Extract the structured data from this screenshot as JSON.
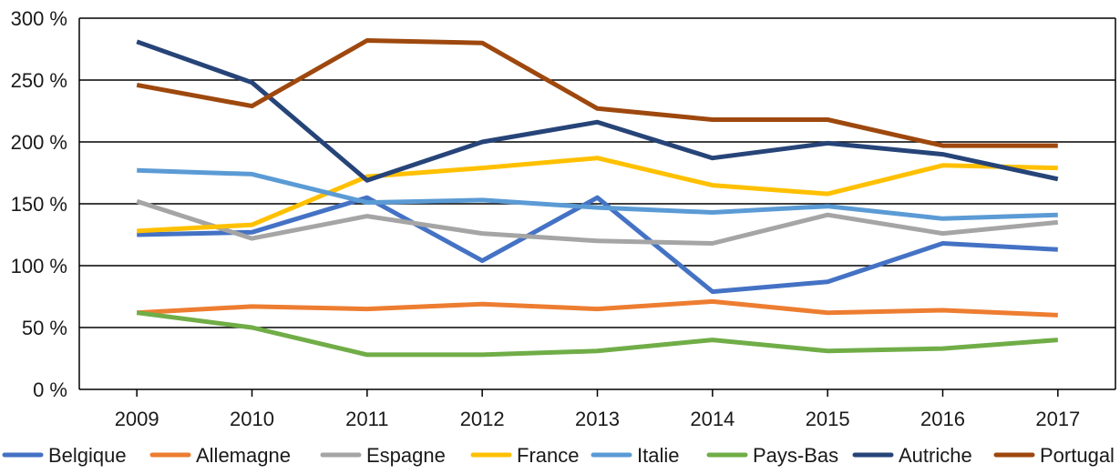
{
  "chart_data": {
    "type": "line",
    "title": "",
    "xlabel": "",
    "ylabel": "",
    "categories": [
      "2009",
      "2010",
      "2011",
      "2012",
      "2013",
      "2014",
      "2015",
      "2016",
      "2017"
    ],
    "ylim": [
      0,
      300
    ],
    "yticks": [
      0,
      50,
      100,
      150,
      200,
      250,
      300
    ],
    "ytick_labels": [
      "0 %",
      "50 %",
      "100 %",
      "150 %",
      "200 %",
      "250 %",
      "300 %"
    ],
    "grid": "horizontal",
    "legend_position": "bottom",
    "series": [
      {
        "name": "Belgique",
        "color": "#4472C4",
        "values": [
          125,
          127,
          155,
          104,
          155,
          79,
          87,
          118,
          113
        ]
      },
      {
        "name": "Allemagne",
        "color": "#ED7D31",
        "values": [
          62,
          67,
          65,
          69,
          65,
          71,
          62,
          64,
          60
        ]
      },
      {
        "name": "Espagne",
        "color": "#A5A5A5",
        "values": [
          152,
          122,
          140,
          126,
          120,
          118,
          141,
          126,
          135
        ]
      },
      {
        "name": "France",
        "color": "#FFC000",
        "values": [
          128,
          133,
          172,
          179,
          187,
          165,
          158,
          181,
          179
        ]
      },
      {
        "name": "Italie",
        "color": "#5B9BD5",
        "values": [
          177,
          174,
          151,
          153,
          147,
          143,
          148,
          138,
          141
        ]
      },
      {
        "name": "Pays-Bas",
        "color": "#70AD47",
        "values": [
          62,
          50,
          28,
          28,
          31,
          40,
          31,
          33,
          40
        ]
      },
      {
        "name": "Autriche",
        "color": "#264478",
        "values": [
          281,
          248,
          169,
          200,
          216,
          187,
          199,
          190,
          170
        ]
      },
      {
        "name": "Portugal",
        "color": "#9E480E",
        "values": [
          246,
          229,
          282,
          280,
          227,
          218,
          218,
          197,
          197
        ]
      }
    ]
  }
}
